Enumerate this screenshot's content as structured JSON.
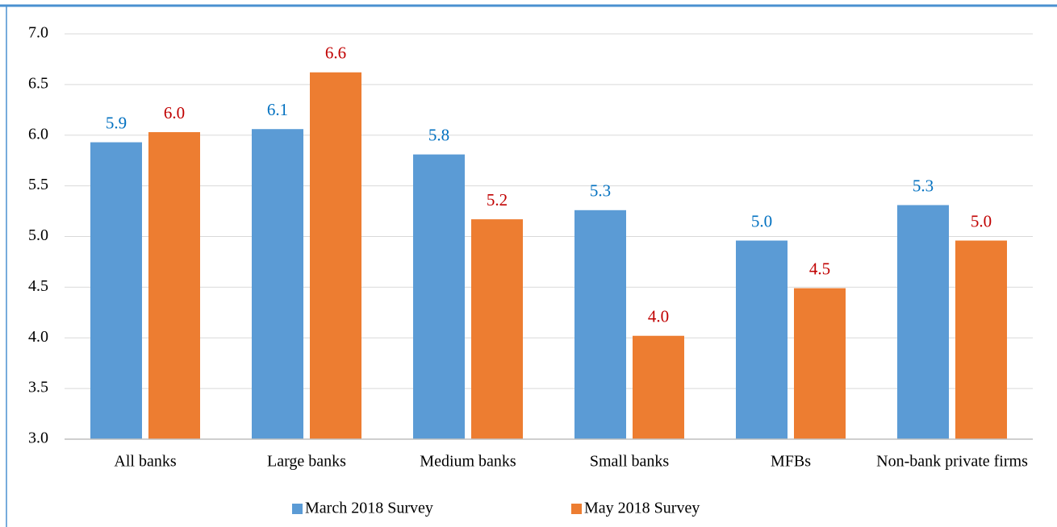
{
  "chart_data": {
    "type": "bar",
    "categories": [
      "All banks",
      "Large banks",
      "Medium banks",
      "Small banks",
      "MFBs",
      "Non-bank private firms"
    ],
    "series": [
      {
        "name": "March 2018 Survey",
        "color": "#5b9bd5",
        "label_color": "#0070c0",
        "values": [
          5.93,
          6.06,
          5.81,
          5.26,
          4.96,
          5.31
        ],
        "value_labels": [
          "5.9",
          "6.1",
          "5.8",
          "5.3",
          "5.0",
          "5.3"
        ]
      },
      {
        "name": "May 2018 Survey",
        "color": "#ed7d31",
        "label_color": "#c00000",
        "values": [
          6.03,
          6.62,
          5.17,
          4.02,
          4.49,
          4.96
        ],
        "value_labels": [
          "6.0",
          "6.6",
          "5.2",
          "4.0",
          "4.5",
          "5.0"
        ]
      }
    ],
    "ylim": [
      3,
      7
    ],
    "yticks": [
      {
        "value": 3,
        "label": "3.0"
      },
      3.5,
      {
        "value": 4,
        "label": "4.0"
      },
      4.5,
      {
        "value": 5,
        "label": "5.0"
      },
      5.5,
      {
        "value": 6,
        "label": "6.0"
      },
      6.5,
      {
        "value": 7,
        "label": "7.0"
      }
    ],
    "grid": true,
    "legend": "bottom"
  }
}
